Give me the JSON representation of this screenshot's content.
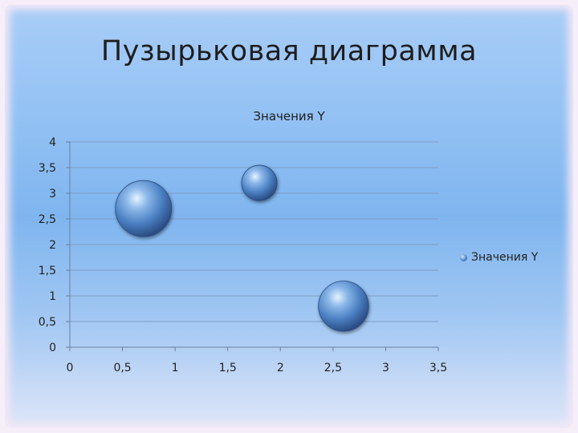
{
  "slide": {
    "title": "Пузырьковая диаграмма"
  },
  "chart_data": {
    "type": "scatter",
    "subtype": "bubble",
    "title": "Значения Y",
    "xlim": [
      0,
      3.5
    ],
    "ylim": [
      0,
      4
    ],
    "x_ticks": [
      "0",
      "0,5",
      "1",
      "1,5",
      "2",
      "2,5",
      "3",
      "3,5"
    ],
    "y_ticks": [
      "0",
      "0,5",
      "1",
      "1,5",
      "2",
      "2,5",
      "3",
      "3,5",
      "4"
    ],
    "series": [
      {
        "name": "Значения Y",
        "color": "#4a7fc1",
        "points": [
          {
            "x": 0.7,
            "y": 2.7,
            "size": 10
          },
          {
            "x": 1.8,
            "y": 3.2,
            "size": 4
          },
          {
            "x": 2.6,
            "y": 0.8,
            "size": 8
          }
        ]
      }
    ],
    "grid": {
      "horizontal": true,
      "vertical": false
    },
    "legend": {
      "position": "right",
      "entries": [
        "Значения Y"
      ]
    }
  }
}
